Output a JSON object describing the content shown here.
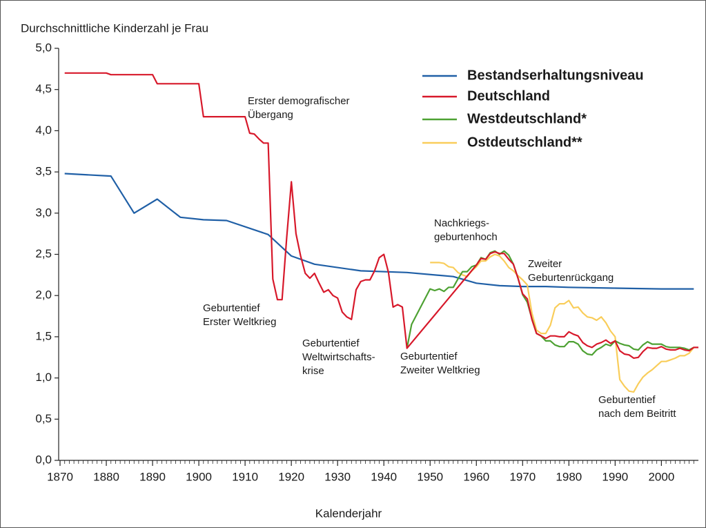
{
  "chart_data": {
    "type": "line",
    "y_label": "Durchschnittliche Kinderzahl je Frau",
    "x_label": "Kalenderjahr",
    "xlim": [
      1869.7,
      2008
    ],
    "ylim": [
      0,
      5
    ],
    "xticks": [
      1870,
      1880,
      1890,
      1900,
      1910,
      1920,
      1930,
      1940,
      1950,
      1960,
      1970,
      1980,
      1990,
      2000
    ],
    "yticks": [
      {
        "value": 0,
        "label": "0,0"
      },
      {
        "value": 0.5,
        "label": "0,5"
      },
      {
        "value": 1,
        "label": "1,0"
      },
      {
        "value": 1.5,
        "label": "1,5"
      },
      {
        "value": 2,
        "label": "2,0"
      },
      {
        "value": 2.5,
        "label": "2,5"
      },
      {
        "value": 3,
        "label": "3,0"
      },
      {
        "value": 3.5,
        "label": "3,5"
      },
      {
        "value": 4,
        "label": "4,0"
      },
      {
        "value": 4.5,
        "label": "4,5"
      },
      {
        "value": 5,
        "label": "5,0"
      }
    ],
    "grid": false,
    "legend": "upper right",
    "annotations": [
      [
        "Erster demografischer",
        "Übergang"
      ],
      [
        "Geburtentief",
        "Erster Weltkrieg"
      ],
      [
        "Geburtentief",
        "Weltwirtschafts-",
        "krise"
      ],
      [
        "Geburtentief",
        "Zweiter Weltkrieg"
      ],
      [
        "Nachkriegs-",
        "geburtenhoch"
      ],
      [
        "Zweiter",
        "Geburtenrückgang"
      ],
      [
        "Geburtentief",
        "nach dem Beitritt"
      ]
    ],
    "series": [
      {
        "name": "Bestandserhaltungsniveau",
        "color": "#1f5fa6",
        "x": [
          1871,
          1881,
          1886,
          1891,
          1896,
          1901,
          1906,
          1915,
          1920,
          1925,
          1935,
          1945,
          1955,
          1960,
          1965,
          1970,
          1975,
          1980,
          1990,
          2000,
          2007
        ],
        "values": [
          3.48,
          3.45,
          3.0,
          3.17,
          2.95,
          2.92,
          2.91,
          2.74,
          2.48,
          2.38,
          2.3,
          2.28,
          2.23,
          2.15,
          2.12,
          2.11,
          2.11,
          2.1,
          2.09,
          2.08,
          2.08
        ]
      },
      {
        "name": "Deutschland",
        "color": "#d7182a",
        "x": [
          1871,
          1880,
          1881,
          1890,
          1891,
          1900,
          1901,
          1910,
          1911,
          1912,
          1913,
          1914,
          1915,
          1916,
          1917,
          1918,
          1919,
          1920,
          1921,
          1922,
          1923,
          1924,
          1925,
          1926,
          1927,
          1928,
          1929,
          1930,
          1931,
          1932,
          1933,
          1934,
          1935,
          1936,
          1937,
          1938,
          1939,
          1940,
          1941,
          1942,
          1943,
          1944,
          1945,
          1960,
          1961,
          1962,
          1963,
          1964,
          1965,
          1966,
          1967,
          1968,
          1969,
          1970,
          1971,
          1972,
          1973,
          1974,
          1975,
          1976,
          1977,
          1978,
          1979,
          1980,
          1981,
          1982,
          1983,
          1984,
          1985,
          1986,
          1987,
          1988,
          1989,
          1990,
          1991,
          1992,
          1993,
          1994,
          1995,
          1996,
          1997,
          1998,
          1999,
          2000,
          2001,
          2002,
          2003,
          2004,
          2005,
          2006,
          2007,
          2008
        ],
        "values": [
          4.7,
          4.7,
          4.68,
          4.68,
          4.57,
          4.57,
          4.17,
          4.17,
          3.97,
          3.96,
          3.9,
          3.85,
          3.85,
          2.2,
          1.95,
          1.95,
          2.7,
          3.38,
          2.75,
          2.48,
          2.27,
          2.21,
          2.27,
          2.15,
          2.04,
          2.07,
          2.0,
          1.97,
          1.8,
          1.74,
          1.71,
          2.07,
          2.17,
          2.19,
          2.19,
          2.3,
          2.46,
          2.5,
          2.28,
          1.86,
          1.89,
          1.86,
          1.36,
          2.37,
          2.45,
          2.44,
          2.51,
          2.53,
          2.51,
          2.51,
          2.44,
          2.38,
          2.21,
          2.02,
          1.96,
          1.71,
          1.54,
          1.51,
          1.48,
          1.51,
          1.51,
          1.5,
          1.5,
          1.56,
          1.53,
          1.51,
          1.43,
          1.39,
          1.37,
          1.41,
          1.43,
          1.46,
          1.42,
          1.45,
          1.33,
          1.29,
          1.28,
          1.24,
          1.25,
          1.32,
          1.37,
          1.36,
          1.36,
          1.38,
          1.35,
          1.34,
          1.34,
          1.36,
          1.34,
          1.33,
          1.37,
          1.37
        ]
      },
      {
        "name": "Westdeutschland*",
        "color": "#4da132",
        "x": [
          1945,
          1946,
          1950,
          1951,
          1952,
          1953,
          1954,
          1955,
          1956,
          1957,
          1958,
          1959,
          1960,
          1961,
          1962,
          1963,
          1964,
          1965,
          1966,
          1967,
          1968,
          1969,
          1970,
          1971,
          1972,
          1973,
          1974,
          1975,
          1976,
          1977,
          1978,
          1979,
          1980,
          1981,
          1982,
          1983,
          1984,
          1985,
          1986,
          1987,
          1988,
          1989,
          1990,
          1991,
          1992,
          1993,
          1994,
          1995,
          1996,
          1997,
          1998,
          1999,
          2000,
          2001,
          2002,
          2003,
          2004,
          2005,
          2006,
          2007
        ],
        "values": [
          1.36,
          1.65,
          2.08,
          2.06,
          2.08,
          2.05,
          2.1,
          2.1,
          2.2,
          2.29,
          2.29,
          2.35,
          2.37,
          2.46,
          2.44,
          2.52,
          2.54,
          2.5,
          2.54,
          2.49,
          2.38,
          2.21,
          2.01,
          1.92,
          1.72,
          1.54,
          1.51,
          1.45,
          1.45,
          1.4,
          1.38,
          1.38,
          1.44,
          1.44,
          1.41,
          1.33,
          1.29,
          1.28,
          1.34,
          1.37,
          1.41,
          1.39,
          1.45,
          1.42,
          1.4,
          1.39,
          1.35,
          1.34,
          1.4,
          1.44,
          1.41,
          1.41,
          1.41,
          1.38,
          1.37,
          1.37,
          1.37,
          1.36,
          1.34,
          1.37
        ]
      },
      {
        "name": "Ostdeutschland**",
        "color": "#f9cd5a",
        "x": [
          1950,
          1952,
          1953,
          1954,
          1955,
          1956,
          1957,
          1958,
          1959,
          1960,
          1961,
          1962,
          1963,
          1964,
          1965,
          1966,
          1967,
          1968,
          1969,
          1970,
          1971,
          1972,
          1973,
          1974,
          1975,
          1976,
          1977,
          1978,
          1979,
          1980,
          1981,
          1982,
          1983,
          1984,
          1985,
          1986,
          1987,
          1988,
          1989,
          1990,
          1991,
          1992,
          1993,
          1994,
          1995,
          1996,
          1997,
          1998,
          1999,
          2000,
          2001,
          2002,
          2003,
          2004,
          2005,
          2006,
          2007
        ],
        "values": [
          2.4,
          2.4,
          2.39,
          2.35,
          2.34,
          2.28,
          2.25,
          2.23,
          2.3,
          2.35,
          2.42,
          2.42,
          2.47,
          2.5,
          2.48,
          2.42,
          2.34,
          2.3,
          2.24,
          2.19,
          2.13,
          1.79,
          1.58,
          1.54,
          1.54,
          1.64,
          1.85,
          1.9,
          1.9,
          1.94,
          1.85,
          1.86,
          1.79,
          1.74,
          1.73,
          1.7,
          1.74,
          1.67,
          1.57,
          1.5,
          0.98,
          0.9,
          0.84,
          0.83,
          0.93,
          1.01,
          1.06,
          1.1,
          1.15,
          1.2,
          1.2,
          1.22,
          1.24,
          1.27,
          1.27,
          1.3,
          1.37
        ]
      }
    ]
  }
}
